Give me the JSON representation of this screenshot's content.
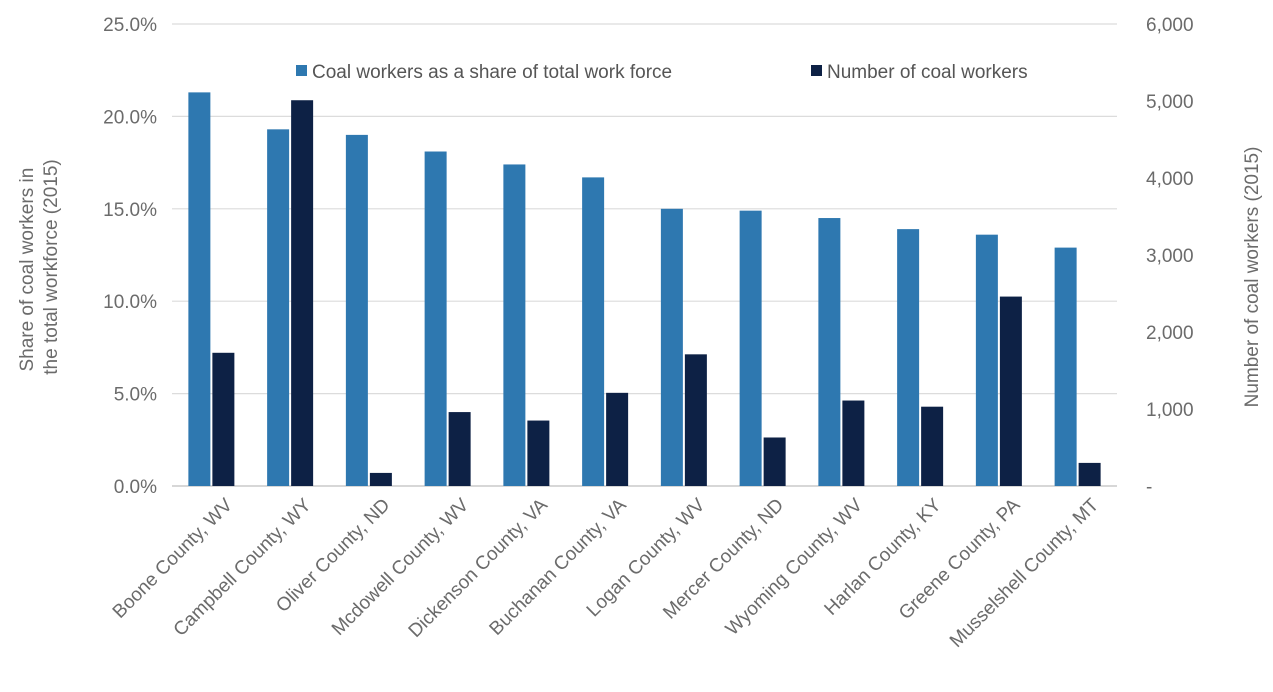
{
  "chart_data": {
    "type": "bar",
    "categories": [
      "Boone County, WV",
      "Campbell County, WY",
      "Oliver County, ND",
      "Mcdowell County, WV",
      "Dickenson County, VA",
      "Buchanan County, VA",
      "Logan County, WV",
      "Mercer County, ND",
      "Wyoming County, WV",
      "Harlan County, KY",
      "Greene County, PA",
      "Musselshell County, MT"
    ],
    "series": [
      {
        "name": "Coal workers as a share of total work force",
        "axis": "left",
        "color": "#2e78b0",
        "values": [
          21.3,
          19.3,
          19.0,
          18.1,
          17.4,
          16.7,
          15.0,
          14.9,
          14.5,
          13.9,
          13.6,
          12.9
        ]
      },
      {
        "name": "Number of coal workers",
        "axis": "right",
        "color": "#0d2145",
        "values": [
          1730,
          5010,
          170,
          960,
          850,
          1210,
          1710,
          630,
          1110,
          1030,
          2460,
          300
        ]
      }
    ],
    "ylabel": "Share of coal workers in the total workforce (2015)",
    "ylabel_lines": [
      "Share of coal workers in",
      "the total workforce (2015)"
    ],
    "y2label": "Number of coal workers (2015)",
    "ylim": [
      0,
      25
    ],
    "y2lim": [
      0,
      6000
    ],
    "y_ticks": [
      "0.0%",
      "5.0%",
      "10.0%",
      "15.0%",
      "20.0%",
      "25.0%"
    ],
    "y2_ticks": [
      "-",
      "1,000",
      "2,000",
      "3,000",
      "4,000",
      "5,000",
      "6,000"
    ],
    "grid": true,
    "legend": "top-right"
  }
}
